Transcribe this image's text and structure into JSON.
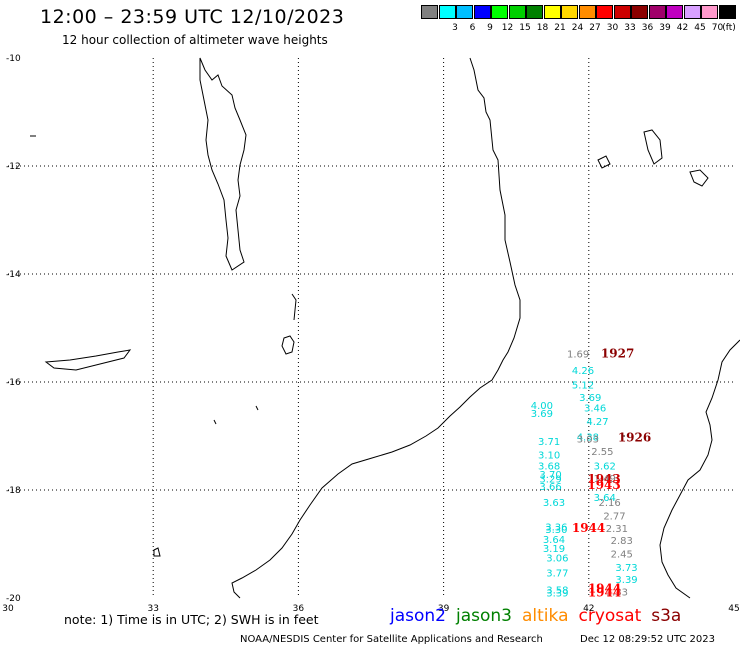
{
  "title": "12:00 – 23:59 UTC 12/10/2023",
  "subtitle": "12 hour collection of altimeter wave heights",
  "legend": {
    "unit": "(ft)",
    "bins": [
      {
        "label": "",
        "color": "#808080"
      },
      {
        "label": "3",
        "color": "#00ffff"
      },
      {
        "label": "6",
        "color": "#00bfff"
      },
      {
        "label": "9",
        "color": "#0000ff"
      },
      {
        "label": "12",
        "color": "#00ff00"
      },
      {
        "label": "15",
        "color": "#00d000"
      },
      {
        "label": "18",
        "color": "#008000"
      },
      {
        "label": "21",
        "color": "#ffff00"
      },
      {
        "label": "24",
        "color": "#ffd700"
      },
      {
        "label": "27",
        "color": "#ff8c00"
      },
      {
        "label": "30",
        "color": "#ff0000"
      },
      {
        "label": "33",
        "color": "#cc0000"
      },
      {
        "label": "36",
        "color": "#8b0000"
      },
      {
        "label": "39",
        "color": "#a0006a"
      },
      {
        "label": "42",
        "color": "#c000c0"
      },
      {
        "label": "45",
        "color": "#d8a0ff"
      },
      {
        "label": "70",
        "color": "#ff99cc"
      },
      {
        "label": "",
        "color": "#000000"
      }
    ]
  },
  "map": {
    "lon_range": [
      30,
      45
    ],
    "lat_range": [
      -20,
      -10
    ],
    "lon_ticks": [
      "30",
      "33",
      "36",
      "39",
      "42",
      "45"
    ],
    "lat_ticks": [
      "-10",
      "-12",
      "-14",
      "-16",
      "-18",
      "-20"
    ],
    "grid": "dotted"
  },
  "observations": [
    {
      "lon": 41.55,
      "lat": -15.55,
      "text": "1.69",
      "color": "#808080"
    },
    {
      "lon": 41.65,
      "lat": -15.85,
      "text": "4.26",
      "color": "#00d8d8"
    },
    {
      "lon": 41.65,
      "lat": -16.12,
      "text": "5.12",
      "color": "#00d8d8"
    },
    {
      "lon": 41.8,
      "lat": -16.35,
      "text": "3.69",
      "color": "#00d8d8"
    },
    {
      "lon": 41.9,
      "lat": -16.55,
      "text": "3.46",
      "color": "#00d8d8"
    },
    {
      "lon": 41.95,
      "lat": -16.8,
      "text": "4.27",
      "color": "#00d8d8"
    },
    {
      "lon": 40.8,
      "lat": -16.5,
      "text": "4.00",
      "color": "#00d8d8"
    },
    {
      "lon": 40.8,
      "lat": -16.65,
      "text": "3.69",
      "color": "#00d8d8"
    },
    {
      "lon": 41.75,
      "lat": -17.08,
      "text": "4.38",
      "color": "#00d8d8"
    },
    {
      "lon": 41.75,
      "lat": -17.12,
      "text": "3.03",
      "color": "#808080"
    },
    {
      "lon": 40.95,
      "lat": -17.17,
      "text": "3.71",
      "color": "#00d8d8"
    },
    {
      "lon": 42.05,
      "lat": -17.35,
      "text": "2.55",
      "color": "#808080"
    },
    {
      "lon": 40.95,
      "lat": -17.42,
      "text": "3.10",
      "color": "#00d8d8"
    },
    {
      "lon": 42.1,
      "lat": -17.62,
      "text": "3.62",
      "color": "#00d8d8"
    },
    {
      "lon": 40.95,
      "lat": -17.62,
      "text": "3.68",
      "color": "#00d8d8"
    },
    {
      "lon": 40.98,
      "lat": -17.78,
      "text": "3.70",
      "color": "#00d8d8"
    },
    {
      "lon": 40.98,
      "lat": -17.86,
      "text": "3.29",
      "color": "#00d8d8"
    },
    {
      "lon": 40.98,
      "lat": -18.0,
      "text": "3.66",
      "color": "#00d8d8"
    },
    {
      "lon": 42.1,
      "lat": -17.85,
      "text": "1.49",
      "color": "#808080"
    },
    {
      "lon": 42.1,
      "lat": -18.2,
      "text": "3.64",
      "color": "#00d8d8"
    },
    {
      "lon": 41.05,
      "lat": -18.3,
      "text": "3.63",
      "color": "#00d8d8"
    },
    {
      "lon": 42.2,
      "lat": -18.3,
      "text": "2.16",
      "color": "#808080"
    },
    {
      "lon": 42.3,
      "lat": -18.55,
      "text": "2.77",
      "color": "#808080"
    },
    {
      "lon": 41.1,
      "lat": -18.75,
      "text": "3.36",
      "color": "#00d8d8"
    },
    {
      "lon": 41.1,
      "lat": -18.8,
      "text": "3.30",
      "color": "#00d8d8"
    },
    {
      "lon": 42.35,
      "lat": -18.78,
      "text": "2.31",
      "color": "#808080"
    },
    {
      "lon": 41.05,
      "lat": -18.98,
      "text": "3.64",
      "color": "#00d8d8"
    },
    {
      "lon": 42.45,
      "lat": -19.0,
      "text": "2.83",
      "color": "#808080"
    },
    {
      "lon": 41.05,
      "lat": -19.15,
      "text": "3.19",
      "color": "#00d8d8"
    },
    {
      "lon": 42.45,
      "lat": -19.25,
      "text": "2.45",
      "color": "#808080"
    },
    {
      "lon": 41.12,
      "lat": -19.32,
      "text": "3.06",
      "color": "#00d8d8"
    },
    {
      "lon": 42.55,
      "lat": -19.5,
      "text": "3.73",
      "color": "#00d8d8"
    },
    {
      "lon": 41.12,
      "lat": -19.6,
      "text": "3.77",
      "color": "#00d8d8"
    },
    {
      "lon": 42.55,
      "lat": -19.72,
      "text": "3.39",
      "color": "#00d8d8"
    },
    {
      "lon": 41.12,
      "lat": -19.92,
      "text": "3.58",
      "color": "#00d8d8"
    },
    {
      "lon": 41.12,
      "lat": -19.97,
      "text": "3.39",
      "color": "#00d8d8"
    },
    {
      "lon": 42.35,
      "lat": -19.95,
      "text": "1.33",
      "color": "#808080"
    }
  ],
  "passes": [
    {
      "lon": 42.25,
      "lat": -15.55,
      "text": "1927",
      "color": "#8b0000"
    },
    {
      "lon": 42.6,
      "lat": -17.1,
      "text": "1926",
      "color": "#8b0000"
    },
    {
      "lon": 41.97,
      "lat": -17.87,
      "text": "1943",
      "color": "#cc0000"
    },
    {
      "lon": 41.97,
      "lat": -17.98,
      "text": "1943",
      "color": "#ff0000"
    },
    {
      "lon": 41.65,
      "lat": -18.78,
      "text": "1944",
      "color": "#ff0000"
    },
    {
      "lon": 41.98,
      "lat": -19.9,
      "text": "1944",
      "color": "#ff0000"
    },
    {
      "lon": 41.98,
      "lat": -19.97,
      "text": "1944",
      "color": "#ff0000"
    }
  ],
  "footer": {
    "note": "note:  1) Time is in UTC; 2) SWH is in feet",
    "satellites": [
      {
        "name": "jason2",
        "color": "#0000ff"
      },
      {
        "name": "jason3",
        "color": "#008000"
      },
      {
        "name": "altika",
        "color": "#ff8c00"
      },
      {
        "name": "cryosat",
        "color": "#ff0000"
      },
      {
        "name": "s3a",
        "color": "#8b0000"
      }
    ],
    "credit": "NOAA/NESDIS Center for Satellite Applications and Research",
    "timestamp": "Dec 12 08:29:52 UTC 2023"
  }
}
